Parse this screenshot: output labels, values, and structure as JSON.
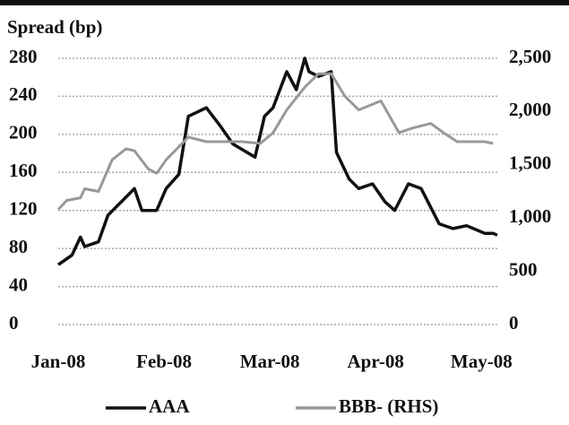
{
  "chart_data": {
    "type": "line",
    "title": "Spread (bp)",
    "xlim": [
      0,
      4.15
    ],
    "xticks": [
      {
        "value": 0,
        "label": "Jan-08"
      },
      {
        "value": 1,
        "label": "Feb-08"
      },
      {
        "value": 2,
        "label": "Mar-08"
      },
      {
        "value": 3,
        "label": "Apr-08"
      },
      {
        "value": 4,
        "label": "May-08"
      }
    ],
    "ylim": [
      0,
      280
    ],
    "yticks": [
      0,
      40,
      80,
      120,
      160,
      200,
      240,
      280
    ],
    "y2lim": [
      0,
      2500
    ],
    "y2ticks": [
      0,
      500,
      {
        "value": 1000,
        "label": "1,000"
      },
      {
        "value": 1500,
        "label": "1,500"
      },
      {
        "value": 2000,
        "label": "2,000"
      },
      {
        "value": 2500,
        "label": "2,500"
      }
    ],
    "grid": true,
    "series": [
      {
        "name": "AAA",
        "color": "#111111",
        "x": [
          0,
          0.04,
          0.13,
          0.21,
          0.25,
          0.38,
          0.47,
          0.64,
          0.72,
          0.79,
          0.93,
          1.02,
          1.14,
          1.23,
          1.4,
          1.53,
          1.65,
          1.86,
          1.95,
          2.03,
          2.16,
          2.25,
          2.33,
          2.37,
          2.46,
          2.58,
          2.63,
          2.75,
          2.84,
          2.97,
          3.09,
          3.18,
          3.31,
          3.43,
          3.6,
          3.73,
          3.86,
          4.03,
          4.11,
          4.15
        ],
        "values": [
          63,
          66,
          73,
          92,
          82,
          87,
          115,
          134,
          143,
          120,
          120,
          143,
          158,
          219,
          228,
          209,
          190,
          176,
          219,
          228,
          266,
          247,
          280,
          266,
          261,
          266,
          181,
          153,
          143,
          148,
          129,
          120,
          148,
          143,
          106,
          101,
          104,
          96,
          96,
          94
        ]
      },
      {
        "name": "BBB- (RHS)",
        "color": "#999999",
        "axis": "y2",
        "x": [
          0,
          0.08,
          0.21,
          0.25,
          0.38,
          0.51,
          0.64,
          0.72,
          0.85,
          0.93,
          1.02,
          1.23,
          1.4,
          1.74,
          1.91,
          2.03,
          2.16,
          2.33,
          2.46,
          2.58,
          2.71,
          2.84,
          3.05,
          3.22,
          3.35,
          3.52,
          3.64,
          3.77,
          3.9,
          4.03,
          4.11
        ],
        "values": [
          1080,
          1165,
          1190,
          1275,
          1250,
          1547,
          1650,
          1632,
          1462,
          1420,
          1547,
          1760,
          1717,
          1717,
          1700,
          1800,
          2015,
          2228,
          2355,
          2355,
          2143,
          2015,
          2100,
          1802,
          1845,
          1888,
          1802,
          1717,
          1717,
          1717,
          1700
        ]
      }
    ]
  }
}
